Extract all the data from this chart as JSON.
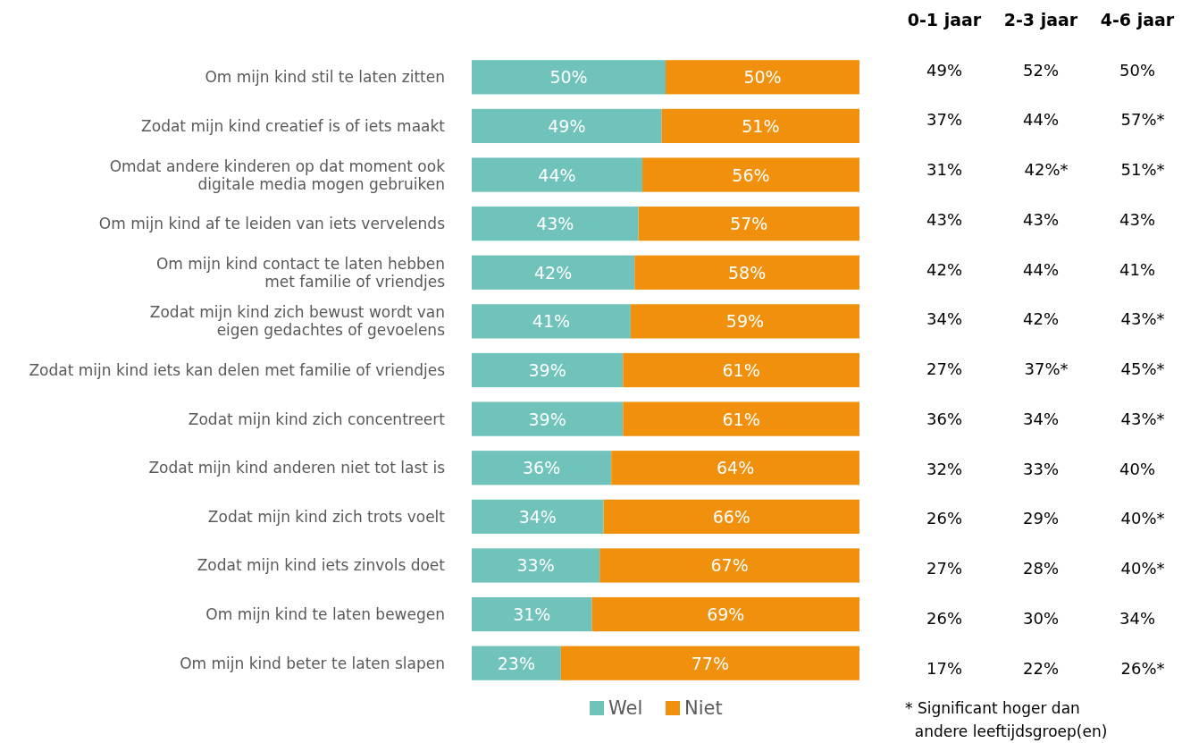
{
  "chart_data": [
    {
      "type": "bar",
      "orientation": "horizontal",
      "stacked": true,
      "legend": "bottom",
      "xlim": [
        0,
        100
      ],
      "tick_labels": "y",
      "categories": [
        "Om mijn kind stil te laten zitten",
        "Zodat mijn kind creatief is of iets maakt",
        "Omdat andere kinderen op dat moment ook\ndigitale media mogen gebruiken",
        "Om mijn kind af te leiden van iets vervelends",
        "Om mijn kind contact te laten hebben\nmet familie of vriendjes",
        "Zodat mijn kind zich bewust wordt van\neigen gedachtes of gevoelens",
        "Zodat mijn kind iets kan delen met familie of vriendjes",
        "Zodat mijn kind zich concentreert",
        "Zodat mijn kind anderen niet tot last is",
        "Zodat mijn kind zich trots voelt",
        "Zodat mijn kind iets zinvols doet",
        "Om mijn kind te laten bewegen",
        "Om mijn kind beter te laten slapen"
      ],
      "series": [
        {
          "name": "Wel",
          "color": "#6fc3ba",
          "values": [
            50,
            49,
            44,
            43,
            42,
            41,
            39,
            39,
            36,
            34,
            33,
            31,
            23
          ],
          "value_labels": [
            "50%",
            "49%",
            "44%",
            "43%",
            "42%",
            "41%",
            "39%",
            "39%",
            "36%",
            "34%",
            "33%",
            "31%",
            "23%"
          ]
        },
        {
          "name": "Niet",
          "color": "#f0900c",
          "values": [
            50,
            51,
            56,
            57,
            58,
            59,
            61,
            61,
            64,
            66,
            67,
            69,
            77
          ],
          "value_labels": [
            "50%",
            "51%",
            "56%",
            "57%",
            "58%",
            "59%",
            "61%",
            "61%",
            "64%",
            "66%",
            "67%",
            "69%",
            "77%"
          ]
        }
      ]
    },
    {
      "type": "other",
      "categories": [
        "0-1 jaar",
        "2-3 jaar",
        "4-6 jaar"
      ],
      "cell_labels": [
        [
          "49%",
          "52%",
          "50%"
        ],
        [
          "37%",
          "44%",
          "57%*"
        ],
        [
          "31%",
          "42%*",
          "51%*"
        ],
        [
          "43%",
          "43%",
          "43%"
        ],
        [
          "42%",
          "44%",
          "41%"
        ],
        [
          "34%",
          "42%",
          "43%*"
        ],
        [
          "27%",
          "37%*",
          "45%*"
        ],
        [
          "36%",
          "34%",
          "43%*"
        ],
        [
          "32%",
          "33%",
          "40%"
        ],
        [
          "26%",
          "29%",
          "40%*"
        ],
        [
          "27%",
          "28%",
          "40%*"
        ],
        [
          "26%",
          "30%",
          "34%"
        ],
        [
          "17%",
          "22%",
          "26%*"
        ]
      ],
      "annotations": [
        "* Significant hoger dan\n  andere leeftijdsgroep(en)"
      ]
    }
  ]
}
